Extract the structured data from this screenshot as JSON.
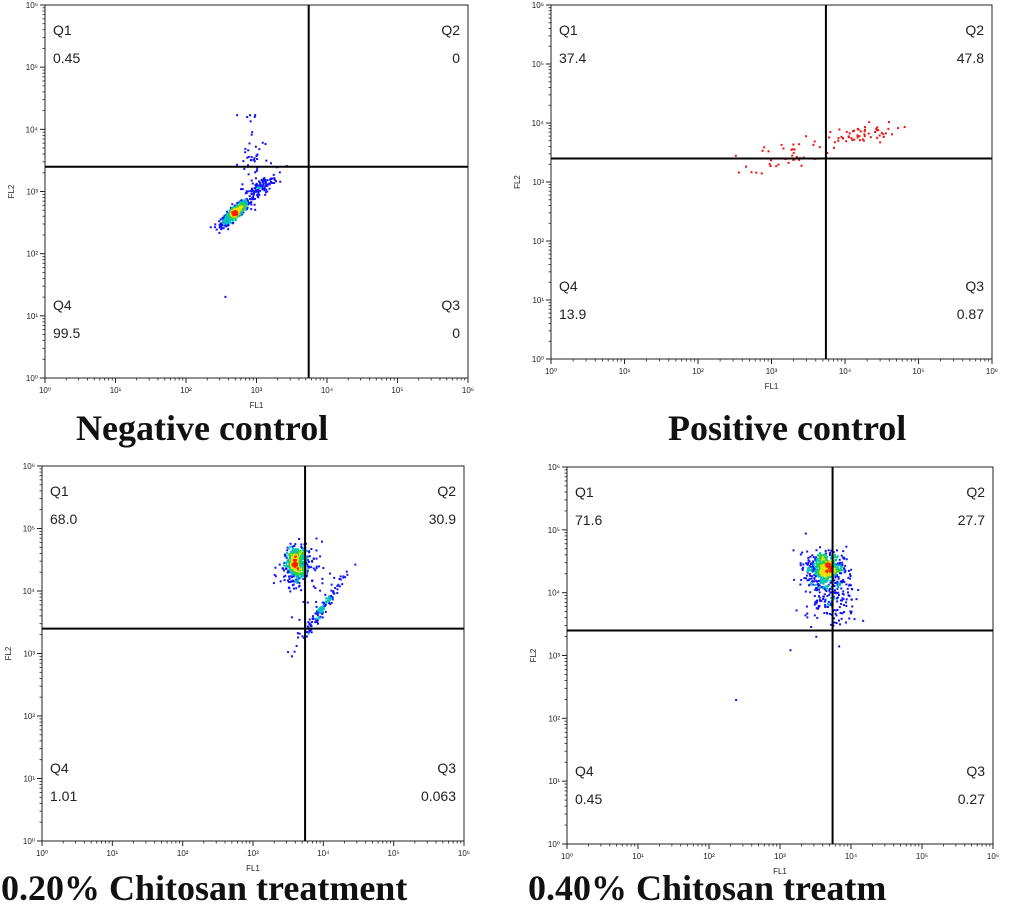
{
  "colors": {
    "axis": "#222222",
    "gate": "#000000",
    "text": "#222222",
    "density_low": "#1010ff",
    "density_mid": "#00c0c0",
    "density_high": "#30d040",
    "density_peak": "#f0e000",
    "density_max": "#ff2000",
    "positive_dots": "#ee1111"
  },
  "chart_data": [
    {
      "type": "scatter",
      "caption": "Negative control",
      "xlabel": "FL1",
      "ylabel": "FL2",
      "axis_scale": "log",
      "xlim": [
        1,
        1000000
      ],
      "ylim": [
        1,
        1000000
      ],
      "tick_labels": [
        "10⁰",
        "10¹",
        "10²",
        "10³",
        "10⁴",
        "10⁵",
        "10⁶"
      ],
      "gate": {
        "x": 5500,
        "y": 2500
      },
      "quadrants": [
        {
          "name": "Q1",
          "value": "0.45"
        },
        {
          "name": "Q2",
          "value": "0"
        },
        {
          "name": "Q3",
          "value": "0"
        },
        {
          "name": "Q4",
          "value": "99.5"
        }
      ]
    },
    {
      "type": "scatter",
      "caption": "Positive control",
      "xlabel": "FL1",
      "ylabel": "FL2",
      "axis_scale": "log",
      "xlim": [
        1,
        1000000
      ],
      "ylim": [
        1,
        1000000
      ],
      "tick_labels": [
        "10⁰",
        "10¹",
        "10²",
        "10³",
        "10⁴",
        "10⁵",
        "10⁶"
      ],
      "gate": {
        "x": 5500,
        "y": 2500
      },
      "quadrants": [
        {
          "name": "Q1",
          "value": "37.4"
        },
        {
          "name": "Q2",
          "value": "47.8"
        },
        {
          "name": "Q3",
          "value": "0.87"
        },
        {
          "name": "Q4",
          "value": "13.9"
        }
      ]
    },
    {
      "type": "scatter",
      "caption": "0.20% Chitosan treatment",
      "xlabel": "FL1",
      "ylabel": "FL2",
      "axis_scale": "log",
      "xlim": [
        1,
        1000000
      ],
      "ylim": [
        1,
        1000000
      ],
      "tick_labels": [
        "10⁰",
        "10¹",
        "10²",
        "10³",
        "10⁴",
        "10⁵",
        "10⁶"
      ],
      "gate": {
        "x": 5500,
        "y": 2500
      },
      "quadrants": [
        {
          "name": "Q1",
          "value": "68.0"
        },
        {
          "name": "Q2",
          "value": "30.9"
        },
        {
          "name": "Q3",
          "value": "0.063"
        },
        {
          "name": "Q4",
          "value": "1.01"
        }
      ]
    },
    {
      "type": "scatter",
      "caption": "0.40% Chitosan treatm",
      "xlabel": "FL1",
      "ylabel": "FL2",
      "axis_scale": "log",
      "xlim": [
        1,
        1000000
      ],
      "ylim": [
        1,
        1000000
      ],
      "tick_labels": [
        "10⁰",
        "10¹",
        "10²",
        "10³",
        "10⁴",
        "10⁵",
        "10⁶"
      ],
      "gate": {
        "x": 5500,
        "y": 2500
      },
      "quadrants": [
        {
          "name": "Q1",
          "value": "71.6"
        },
        {
          "name": "Q2",
          "value": "27.7"
        },
        {
          "name": "Q3",
          "value": "0.27"
        },
        {
          "name": "Q4",
          "value": "0.45"
        }
      ]
    }
  ]
}
